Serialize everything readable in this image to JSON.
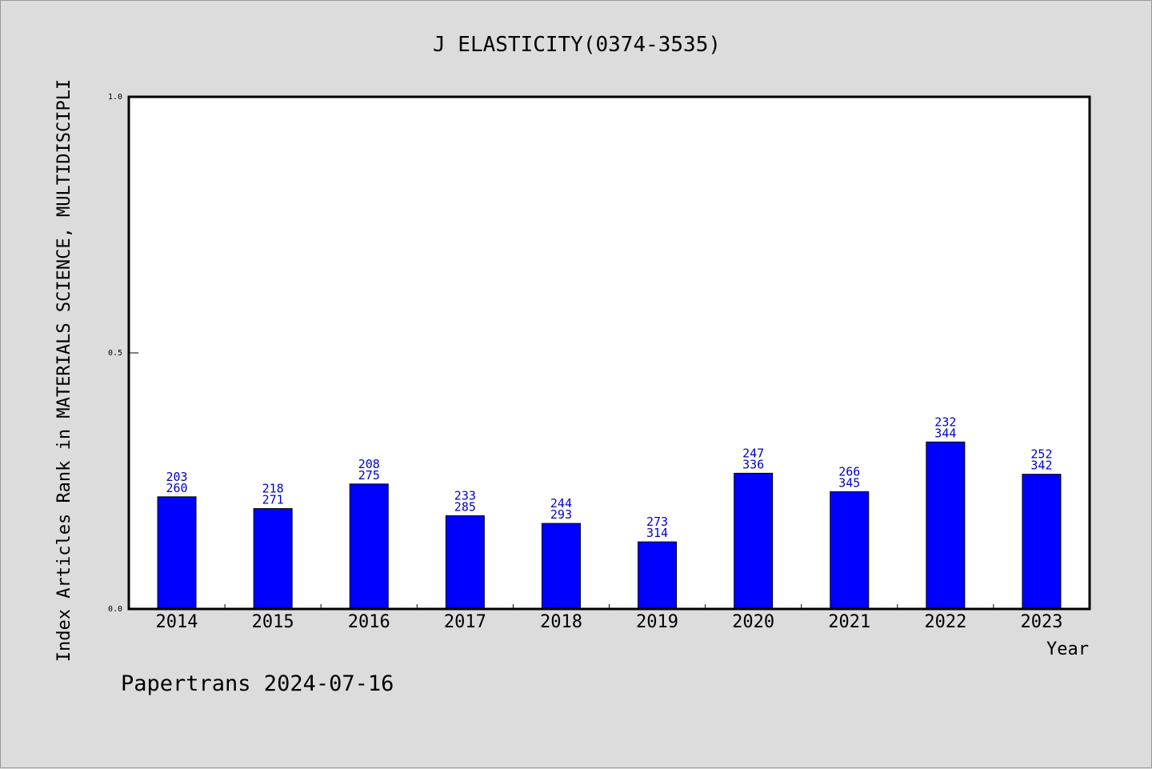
{
  "chart_data": {
    "type": "bar",
    "title": "J ELASTICITY(0374-3535)",
    "xlabel": "Year",
    "ylabel": "Index Articles Rank in MATERIALS SCIENCE, MULTIDISCIPLI",
    "ylim": [
      0.0,
      1.0
    ],
    "yticks": [
      "0.0",
      "0.5",
      "1.0"
    ],
    "categories": [
      "2014",
      "2015",
      "2016",
      "2017",
      "2018",
      "2019",
      "2020",
      "2021",
      "2022",
      "2023"
    ],
    "values": [
      0.219,
      0.196,
      0.244,
      0.182,
      0.167,
      0.131,
      0.265,
      0.229,
      0.326,
      0.263
    ],
    "annotations": [
      [
        "203",
        "260"
      ],
      [
        "218",
        "271"
      ],
      [
        "208",
        "275"
      ],
      [
        "233",
        "285"
      ],
      [
        "244",
        "293"
      ],
      [
        "273",
        "314"
      ],
      [
        "247",
        "336"
      ],
      [
        "266",
        "345"
      ],
      [
        "232",
        "344"
      ],
      [
        "252",
        "342"
      ]
    ],
    "bar_color": "#0000ff",
    "label_color": "#0000cc",
    "grid": false
  },
  "footer": {
    "credit": "Papertrans 2024-07-16"
  }
}
